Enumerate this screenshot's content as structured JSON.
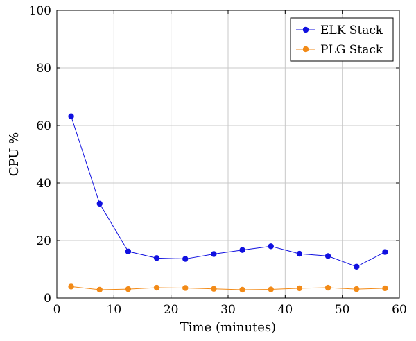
{
  "chart_data": {
    "type": "line",
    "xlabel": "Time (minutes)",
    "ylabel": "CPU %",
    "xlim": [
      0,
      60
    ],
    "ylim": [
      0,
      100
    ],
    "xticks": [
      0,
      10,
      20,
      30,
      40,
      50,
      60
    ],
    "yticks": [
      0,
      20,
      40,
      60,
      80,
      100
    ],
    "grid": true,
    "legend_position": "top-right",
    "x": [
      2.5,
      7.5,
      12.5,
      17.5,
      22.5,
      27.5,
      32.5,
      37.5,
      42.5,
      47.5,
      52.5,
      57.5
    ],
    "series": [
      {
        "name": "ELK Stack",
        "color": "#1010e0",
        "values": [
          63.2,
          32.8,
          16.2,
          13.9,
          13.6,
          15.3,
          16.7,
          18.0,
          15.4,
          14.6,
          10.9,
          16.0
        ]
      },
      {
        "name": "PLG Stack",
        "color": "#f28a17",
        "values": [
          4.0,
          2.9,
          3.1,
          3.6,
          3.5,
          3.2,
          2.9,
          3.0,
          3.4,
          3.6,
          3.1,
          3.4
        ]
      }
    ]
  }
}
